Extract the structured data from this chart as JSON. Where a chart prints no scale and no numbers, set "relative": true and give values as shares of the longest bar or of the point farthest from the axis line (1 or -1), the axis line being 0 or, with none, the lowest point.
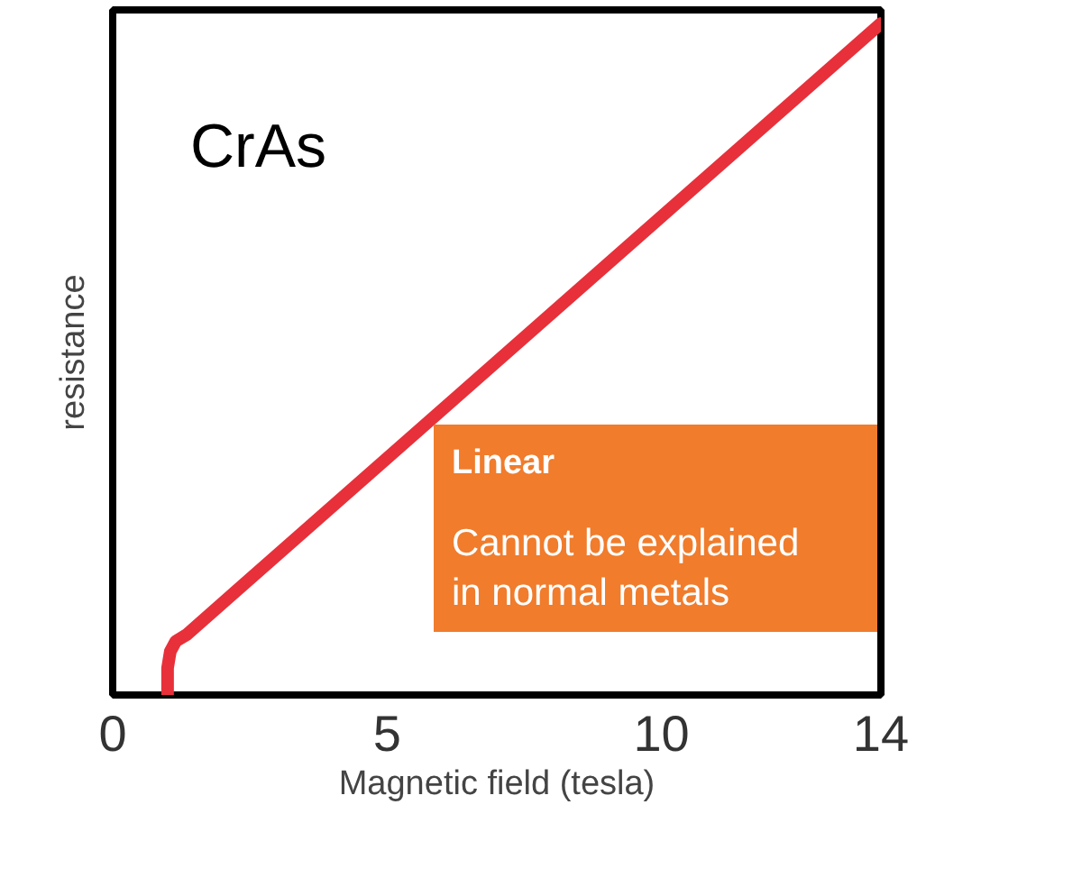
{
  "chart_data": {
    "type": "line",
    "relative": true,
    "xlabel": "Magnetic field (tesla)",
    "ylabel": "resistance",
    "xlim": [
      0,
      14
    ],
    "xticks": [
      0,
      5,
      10,
      14
    ],
    "tick_labels": "x",
    "grid": false,
    "annotations": [
      "CrAs",
      "Linear",
      "Cannot be explained\nin normal metals"
    ],
    "series": [
      {
        "color": "#e8303a",
        "x": [
          1.0,
          1.0,
          1.05,
          1.15,
          1.35,
          14
        ],
        "values": [
          0,
          0.04,
          0.065,
          0.08,
          0.09,
          1
        ]
      }
    ]
  }
}
